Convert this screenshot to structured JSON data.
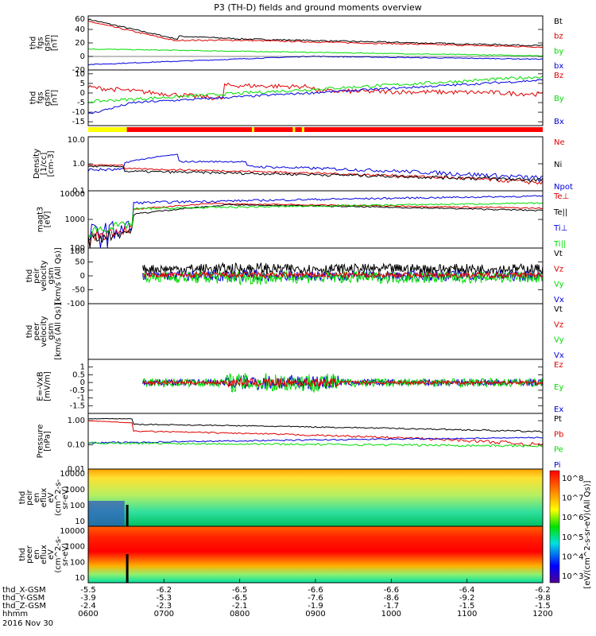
{
  "title": "P3 (TH-D) fields and ground moments overview",
  "date": "2016 Nov 30",
  "colors": {
    "black": "#000000",
    "red": "#e00000",
    "green": "#00dd00",
    "blue": "#0000dd",
    "yellow": "#ffff00"
  },
  "chart_data": {
    "type": "line",
    "x_range": [
      "0600",
      "1200"
    ],
    "panels": [
      {
        "id": "fgs_gsm",
        "ylabel": [
          "thd",
          "fgs",
          "gsm",
          "[nT]"
        ],
        "ylim": [
          -20,
          60
        ],
        "yticks": [
          "60",
          "40",
          "20",
          "0",
          "-20"
        ],
        "legend": [
          {
            "name": "Bt",
            "color": "#000000"
          },
          {
            "name": "bz",
            "color": "#e00000"
          },
          {
            "name": "by",
            "color": "#00dd00"
          },
          {
            "name": "bx",
            "color": "#0000dd"
          }
        ]
      },
      {
        "id": "fgs_dsl",
        "ylabel": [
          "thd",
          "fgs",
          "gsm",
          "[nT]"
        ],
        "ylim": [
          -17,
          12
        ],
        "yticks": [
          "10",
          "5",
          "0",
          "-5",
          "-10",
          "-15"
        ],
        "legend": [
          {
            "name": "Bz",
            "color": "#e00000"
          },
          {
            "name": "By",
            "color": "#00dd00"
          },
          {
            "name": "Bx",
            "color": "#0000dd"
          }
        ]
      },
      {
        "id": "density",
        "ylabel": [
          "Density",
          "[1/cc]",
          "[cm-3]"
        ],
        "scale": "log",
        "ylim": [
          0.1,
          10
        ],
        "yticks": [
          "10.0",
          "1.0",
          "0.1"
        ],
        "legend": [
          {
            "name": "Ne",
            "color": "#e00000"
          },
          {
            "name": "Ni",
            "color": "#000000"
          },
          {
            "name": "Npot",
            "color": "#0000dd"
          }
        ]
      },
      {
        "id": "temperature",
        "ylabel": [
          "magt3",
          "[eV]"
        ],
        "scale": "log",
        "ylim": [
          100,
          10000
        ],
        "yticks": [
          "10000",
          "1000",
          "100"
        ],
        "legend": [
          {
            "name": "Te⊥",
            "color": "#e00000"
          },
          {
            "name": "Te||",
            "color": "#000000"
          },
          {
            "name": "Ti⊥",
            "color": "#0000dd"
          },
          {
            "name": "Ti||",
            "color": "#00dd00"
          }
        ]
      },
      {
        "id": "ion_velocity",
        "ylabel": [
          "thd",
          "peir",
          "velocity",
          "gsm",
          "[km/s (All Qs)]"
        ],
        "ylim": [
          -100,
          100
        ],
        "yticks": [
          "100",
          "50",
          "0",
          "-50",
          "-100"
        ],
        "legend": [
          {
            "name": "Vt",
            "color": "#000000"
          },
          {
            "name": "Vz",
            "color": "#e00000"
          },
          {
            "name": "Vy",
            "color": "#00dd00"
          },
          {
            "name": "Vx",
            "color": "#0000dd"
          }
        ]
      },
      {
        "id": "electron_velocity",
        "ylabel": [
          "thd",
          "peer",
          "velocity",
          "gsm",
          "[km/s (All Qs)]"
        ],
        "ylim": [
          -100,
          100
        ],
        "yticks": [],
        "legend": [
          {
            "name": "Vt",
            "color": "#000000"
          },
          {
            "name": "Vz",
            "color": "#e00000"
          },
          {
            "name": "Vy",
            "color": "#00dd00"
          },
          {
            "name": "Vx",
            "color": "#0000dd"
          }
        ]
      },
      {
        "id": "efield",
        "ylabel": [
          "E=-VxB",
          "[mV/m]"
        ],
        "ylim": [
          -2,
          1.5
        ],
        "yticks": [
          "1",
          "0.5",
          "0",
          "-0.5",
          "-1",
          "-1.5"
        ],
        "legend": [
          {
            "name": "Ez",
            "color": "#e00000"
          },
          {
            "name": "Ey",
            "color": "#00dd00"
          },
          {
            "name": "Ex",
            "color": "#0000dd"
          }
        ]
      },
      {
        "id": "pressure",
        "ylabel": [
          "Pressure",
          "[nPa]"
        ],
        "scale": "log",
        "ylim": [
          0.01,
          2
        ],
        "yticks": [
          "1.00",
          "0.10",
          "0.01"
        ],
        "legend": [
          {
            "name": "Pt",
            "color": "#000000"
          },
          {
            "name": "Pb",
            "color": "#e00000"
          },
          {
            "name": "Pe",
            "color": "#00dd00"
          },
          {
            "name": "Pi",
            "color": "#0000dd"
          }
        ]
      },
      {
        "id": "ion_spectrogram",
        "ylabel": [
          "thd",
          "peir",
          "en",
          "eflux",
          "eV",
          "(cm^2-s-",
          "sr-eV)"
        ],
        "scale": "log",
        "ylim": [
          5,
          20000
        ],
        "yticks": [
          "10000",
          "1000",
          "100",
          "10"
        ]
      },
      {
        "id": "electron_spectrogram",
        "ylabel": [
          "thd",
          "peer",
          "en",
          "eflux",
          "eV",
          "(cm^2-s-",
          "sr-eV)"
        ],
        "scale": "log",
        "ylim": [
          5,
          20000
        ],
        "yticks": [
          "10000",
          "1000",
          "100",
          "10"
        ]
      }
    ],
    "colorbar": {
      "label": "[eV/(cm^2-s-sr-eV)(All Qs)]",
      "ticks": [
        "10^8",
        "10^7",
        "10^6",
        "10^5",
        "10^4",
        "10^3"
      ]
    },
    "x_axis": {
      "rows": [
        {
          "label": "thd_X-GSM",
          "values": [
            "-5.5",
            "-6.2",
            "-6.5",
            "-6.6",
            "-6.6",
            "-6.4",
            "-6.2"
          ]
        },
        {
          "label": "thd_Y-GSM",
          "values": [
            "-3.9",
            "-5.3",
            "-6.5",
            "-7.6",
            "-8.6",
            "-9.2",
            "-9.8"
          ]
        },
        {
          "label": "thd_Z-GSM",
          "values": [
            "-2.4",
            "-2.3",
            "-2.1",
            "-1.9",
            "-1.7",
            "-1.5",
            "-1.5"
          ]
        },
        {
          "label": "hhmm",
          "values": [
            "0600",
            "0700",
            "0800",
            "0900",
            "1000",
            "1100",
            "1200"
          ]
        }
      ]
    }
  }
}
